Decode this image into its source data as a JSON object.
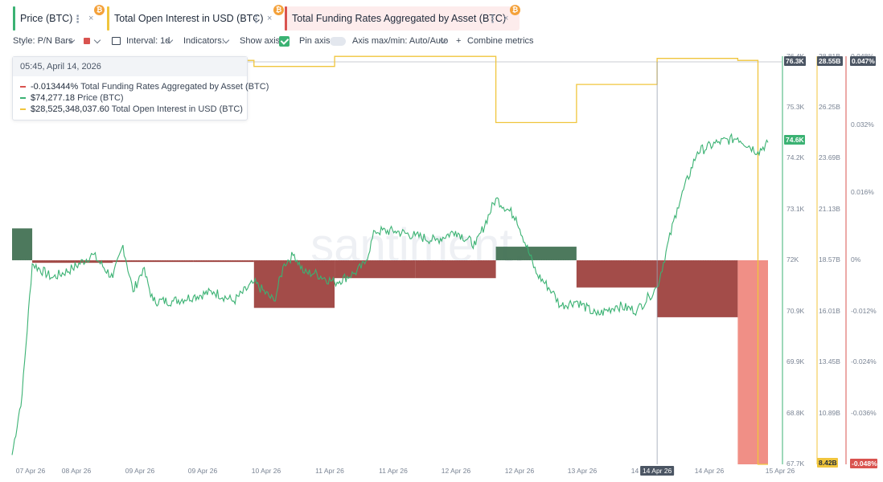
{
  "tabs": [
    {
      "label": "Price (BTC)",
      "color": "#3bb273"
    },
    {
      "label": "Total Open Interest in USD (BTC)",
      "color": "#f0c53d"
    },
    {
      "label": "Total Funding Rates Aggregated by Asset (BTC)",
      "color": "#d9534f"
    }
  ],
  "tab_icons": {
    "menu": "⋮",
    "close": "×",
    "coin": "₿"
  },
  "toolbar": {
    "style": "Style: P/N Bars",
    "interval": "Interval: 1d",
    "indicators": "Indicators:",
    "show_axis": "Show axis",
    "pin_axis": "Pin axis",
    "axis_maxmin": "Axis max/min: Auto/Auto",
    "combine_plus": "+",
    "combine": "Combine metrics"
  },
  "tooltip": {
    "time": "05:45, April 14, 2026",
    "funding_value": "-0.013444%",
    "funding_label": "Total Funding Rates Aggregated by Asset (BTC)",
    "price_value": "$74,277.18",
    "price_label": "Price (BTC)",
    "oi_value": "$28,525,348,037.60",
    "oi_label": "Total Open Interest in USD (BTC)"
  },
  "chart_data": {
    "type": "line",
    "watermark": "santiment.",
    "x_ticks": [
      "07 Apr 26",
      "08 Apr 26",
      "09 Apr 26",
      "09 Apr 26",
      "10 Apr 26",
      "11 Apr 26",
      "11 Apr 26",
      "12 Apr 26",
      "12 Apr 26",
      "13 Apr 26",
      "14 Apr 26",
      "14 Apr 26",
      "15 Apr 26"
    ],
    "x_cursor_label": "14 Apr 26",
    "axes": {
      "price": {
        "ticks": [
          "76.4K",
          "75.3K",
          "74.2K",
          "73.1K",
          "72K",
          "70.9K",
          "69.9K",
          "68.8K",
          "67.7K"
        ],
        "current": "74.6K",
        "cursor": "76.3K",
        "color": "#3bb273"
      },
      "open_interest": {
        "ticks": [
          "28.81B",
          "26.25B",
          "23.69B",
          "21.13B",
          "18.57B",
          "16.01B",
          "13.45B",
          "10.89B"
        ],
        "low": "8.42B",
        "cursor": "28.55B",
        "color": "#f0c53d"
      },
      "funding": {
        "ticks": [
          "0.048%",
          "0.032%",
          "0.016%",
          "0%",
          "-0.012%",
          "-0.024%",
          "-0.036%"
        ],
        "low": "-0.048%",
        "cursor": "0.047%",
        "color": "#d9534f"
      }
    },
    "series": [
      {
        "name": "Price (BTC)",
        "color": "#3bb273",
        "axis": "price",
        "x": [
          0,
          0.25,
          0.5,
          1,
          1.5,
          2,
          2.5,
          2.75,
          3,
          3.25,
          3.5,
          4,
          4.5,
          5,
          5.5,
          6,
          6.5,
          6.75,
          7,
          7.25,
          7.5,
          8,
          8.5,
          8.75,
          9,
          9.5,
          10,
          10.5,
          11,
          11.5,
          12,
          12.5,
          13,
          13.4,
          13.6,
          14,
          14.5,
          15,
          15.5,
          15.8,
          16,
          16.5,
          17,
          17.5,
          18,
          18.5,
          18.75
        ],
        "y": [
          67.9,
          69.2,
          72.0,
          71.7,
          71.9,
          72.2,
          71.7,
          72.4,
          71.4,
          71.9,
          71.2,
          71.2,
          71.3,
          71.4,
          71.2,
          71.6,
          71.2,
          72.0,
          72.2,
          71.8,
          71.8,
          71.6,
          71.8,
          72.0,
          72.7,
          72.7,
          72.6,
          72.5,
          72.7,
          72.4,
          73.4,
          73.0,
          71.8,
          71.4,
          71.1,
          71.2,
          70.9,
          71.1,
          71.0,
          71.3,
          71.5,
          73.2,
          74.4,
          74.6,
          74.7,
          74.4,
          74.6
        ]
      },
      {
        "name": "Total Open Interest in USD (BTC)",
        "color": "#f0c53d",
        "axis": "open_interest",
        "x": [
          0,
          2,
          2,
          4,
          4,
          6,
          6,
          8,
          8,
          10,
          10,
          12,
          12,
          14,
          14,
          16,
          16,
          18,
          18,
          18.5,
          18.5,
          18.75
        ],
        "y": [
          28.3,
          28.3,
          28.4,
          28.4,
          28.6,
          28.6,
          28.3,
          28.3,
          28.8,
          28.8,
          28.8,
          28.8,
          25.5,
          25.5,
          27.4,
          27.4,
          28.7,
          28.7,
          28.6,
          28.6,
          8.42,
          8.42
        ]
      },
      {
        "name": "Total Funding Rates Aggregated by Asset (BTC)",
        "axis": "funding",
        "style": "pn-bars",
        "positive_color": "#3e6e4f",
        "negative_color": "#9b3d3a",
        "latest_color": "#f08f86",
        "bars": [
          {
            "x0": 0,
            "x1": 0.5,
            "value": 0.0075
          },
          {
            "x0": 0.5,
            "x1": 2.5,
            "value": -0.0006
          },
          {
            "x0": 2.5,
            "x1": 4.5,
            "value": -0.0004
          },
          {
            "x0": 4.5,
            "x1": 6,
            "value": -0.0004
          },
          {
            "x0": 6,
            "x1": 8,
            "value": -0.0112
          },
          {
            "x0": 8,
            "x1": 10,
            "value": -0.0042
          },
          {
            "x0": 10,
            "x1": 12,
            "value": -0.0042
          },
          {
            "x0": 12,
            "x1": 14,
            "value": 0.0032
          },
          {
            "x0": 14,
            "x1": 16,
            "value": -0.0064
          },
          {
            "x0": 16,
            "x1": 18,
            "value": -0.0134
          },
          {
            "x0": 18,
            "x1": 18.75,
            "value": -0.048,
            "latest": true
          }
        ]
      }
    ],
    "x_range": [
      0,
      18.75
    ],
    "price_range": [
      67.7,
      76.45
    ],
    "oi_range": [
      8.42,
      28.81
    ],
    "funding_range": [
      -0.048,
      0.048
    ],
    "cursor_x": 16
  }
}
